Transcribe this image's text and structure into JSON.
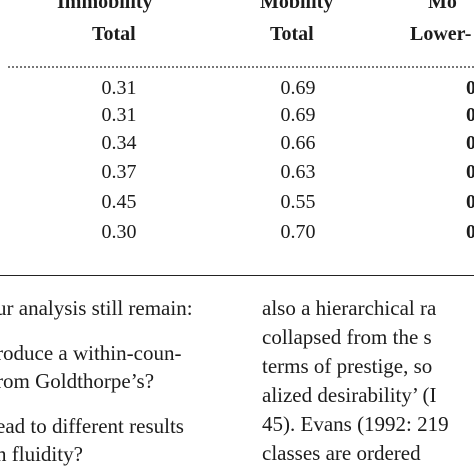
{
  "table": {
    "header_row1": [
      "Immobility",
      "Mobility",
      "Mo"
    ],
    "header_row2": [
      "Total",
      "Total",
      "Lower-"
    ],
    "rows": [
      {
        "immobility": "0.31",
        "mobility": "0.69",
        "edge": "0"
      },
      {
        "immobility": "0.31",
        "mobility": "0.69",
        "edge": "0"
      },
      {
        "immobility": "0.34",
        "mobility": "0.66",
        "edge": "0"
      },
      {
        "immobility": "0.37",
        "mobility": "0.63",
        "edge": "0"
      },
      {
        "immobility": "0.45",
        "mobility": "0.55",
        "edge": "0"
      },
      {
        "immobility": "0.30",
        "mobility": "0.70",
        "edge": "0"
      }
    ]
  },
  "body_text": {
    "left_lines": [
      "ur analysis still remain:",
      "roduce a within-coun-",
      "rom Goldthorpe’s?",
      "ead to different results",
      "n fluidity?"
    ],
    "right_lines": [
      "also a hierarchical ra",
      "collapsed from the s",
      "terms of prestige, so",
      "alized desirability’ (I",
      "45). Evans (1992: 219",
      "classes are ordered"
    ]
  }
}
